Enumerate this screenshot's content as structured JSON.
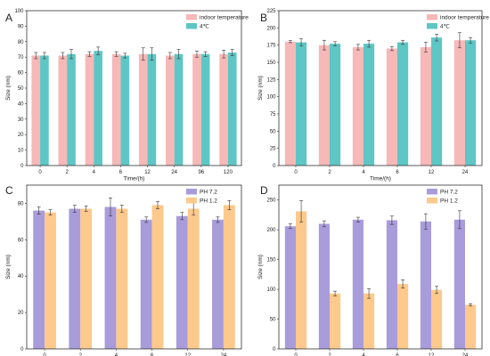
{
  "chart_data": [
    {
      "letter": "A",
      "type": "bar",
      "xlabel": "Time/(h)",
      "ylabel": "Size (nm)",
      "ylim": [
        0,
        100
      ],
      "yticks": [
        0,
        10,
        20,
        30,
        40,
        50,
        60,
        70,
        80,
        90,
        100
      ],
      "categories": [
        "0",
        "2",
        "4",
        "6",
        "12",
        "24",
        "96",
        "120"
      ],
      "legend_position": "top-right",
      "series": [
        {
          "name": "indoor temperature",
          "color": "#f7b8b8",
          "values": [
            71,
            71,
            72,
            72,
            72,
            71,
            72,
            72
          ],
          "errors": [
            2,
            2,
            1.5,
            1.5,
            4,
            2,
            2,
            2.5
          ]
        },
        {
          "name": "4℃",
          "color": "#5ec6c4",
          "values": [
            71,
            72,
            74,
            71,
            72,
            72,
            72,
            73
          ],
          "errors": [
            2,
            3,
            2.5,
            1.5,
            4,
            3,
            1.5,
            2
          ]
        }
      ]
    },
    {
      "letter": "B",
      "type": "bar",
      "xlabel": "Time/(h)",
      "ylabel": "Size (nm)",
      "ylim": [
        0,
        225
      ],
      "yticks": [
        0,
        25,
        50,
        75,
        100,
        125,
        150,
        175,
        200,
        225
      ],
      "categories": [
        "0",
        "2",
        "4",
        "6",
        "12",
        "24"
      ],
      "legend_position": "top-right",
      "series": [
        {
          "name": "indoor temperature",
          "color": "#f7b8b8",
          "values": [
            180,
            175,
            172,
            170,
            172,
            182
          ],
          "errors": [
            1.5,
            7,
            4,
            3,
            7,
            11
          ]
        },
        {
          "name": "4℃",
          "color": "#5ec6c4",
          "values": [
            179,
            177,
            177,
            179,
            186,
            182
          ],
          "errors": [
            5,
            3,
            5,
            3,
            5,
            4
          ]
        }
      ]
    },
    {
      "letter": "C",
      "type": "bar",
      "xlabel": "Time/(h)",
      "ylabel": "Size (nm)",
      "ylim": [
        0,
        90
      ],
      "yticks": [
        0,
        20,
        40,
        60,
        80
      ],
      "categories": [
        "0",
        "2",
        "4",
        "6",
        "12",
        "24"
      ],
      "legend_position": "top-right",
      "series": [
        {
          "name": "PH 7.2",
          "color": "#a99cdb",
          "values": [
            76,
            77,
            78,
            71,
            73,
            71
          ],
          "errors": [
            2,
            2,
            5,
            1.5,
            2,
            1.5
          ]
        },
        {
          "name": "PH 1.2",
          "color": "#fdc98c",
          "values": [
            75,
            77,
            77,
            79,
            77,
            79
          ],
          "errors": [
            1.5,
            1.5,
            2,
            2,
            3.5,
            2.5
          ]
        }
      ]
    },
    {
      "letter": "D",
      "type": "bar",
      "xlabel": "Time/(h)",
      "ylabel": "Size (nm)",
      "ylim": [
        0,
        275
      ],
      "yticks": [
        0,
        50,
        100,
        150,
        200,
        250
      ],
      "categories": [
        "0",
        "2",
        "4",
        "6",
        "12",
        "24"
      ],
      "legend_position": "top-right",
      "series": [
        {
          "name": "PH 7.2",
          "color": "#a99cdb",
          "values": [
            206,
            210,
            217,
            216,
            214,
            217
          ],
          "errors": [
            4,
            5,
            4,
            7,
            13,
            15
          ]
        },
        {
          "name": "PH 1.2",
          "color": "#fdc98c",
          "values": [
            231,
            93,
            93,
            109,
            99,
            74
          ],
          "errors": [
            18,
            4,
            8,
            7,
            6,
            2
          ]
        }
      ]
    }
  ]
}
